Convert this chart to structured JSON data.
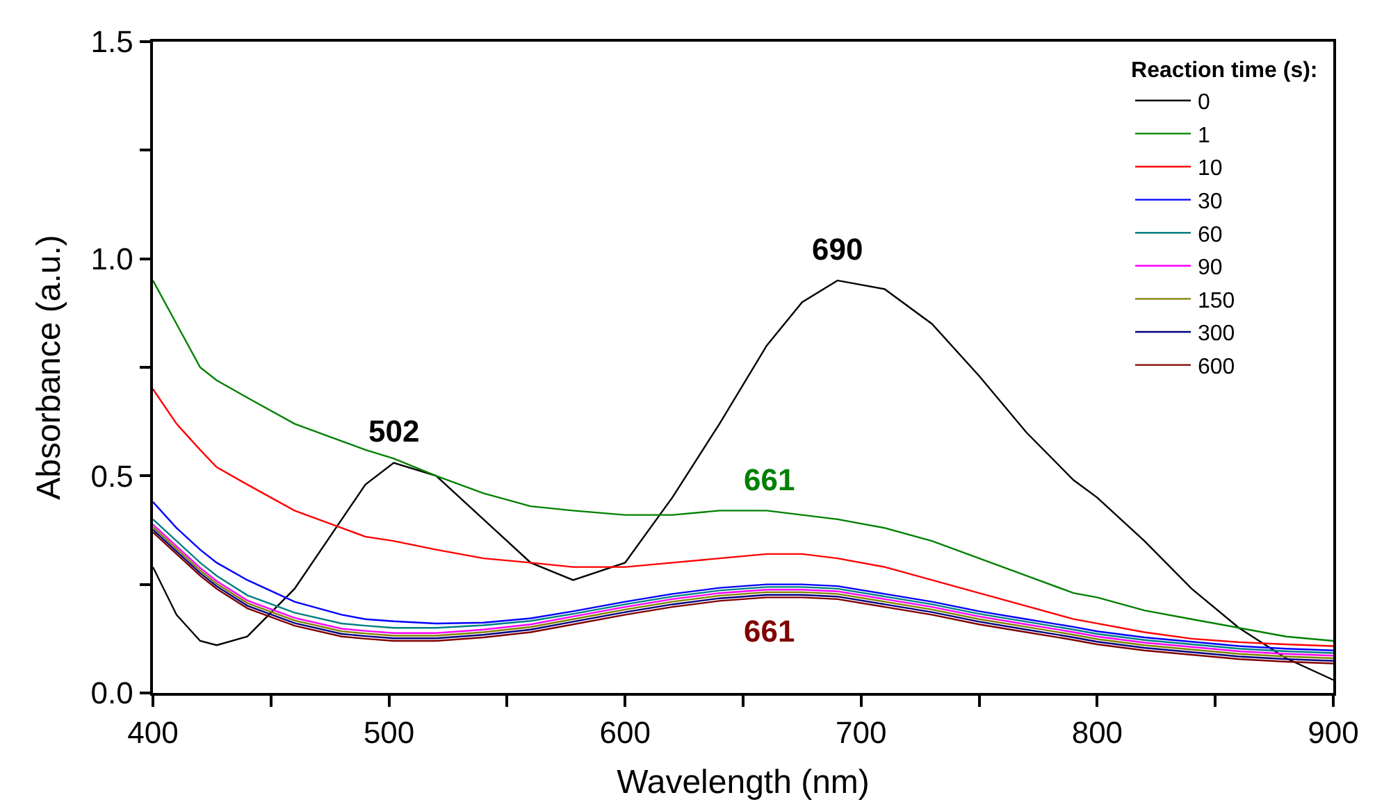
{
  "chart_data": {
    "type": "line",
    "xlabel": "Wavelength (nm)",
    "ylabel": "Absorbance (a.u.)",
    "legend_title": "Reaction time (s):",
    "x": [
      400,
      410,
      420,
      427,
      440,
      460,
      480,
      490,
      502,
      520,
      540,
      560,
      578,
      600,
      620,
      640,
      660,
      675,
      690,
      710,
      730,
      750,
      770,
      790,
      800,
      820,
      840,
      860,
      880,
      900
    ],
    "series": [
      {
        "name": "0",
        "color": "#000000",
        "values": [
          0.29,
          0.18,
          0.12,
          0.11,
          0.13,
          0.24,
          0.4,
          0.48,
          0.53,
          0.5,
          0.4,
          0.3,
          0.26,
          0.3,
          0.45,
          0.62,
          0.8,
          0.9,
          0.95,
          0.93,
          0.85,
          0.73,
          0.6,
          0.49,
          0.45,
          0.35,
          0.24,
          0.15,
          0.08,
          0.03
        ]
      },
      {
        "name": "1",
        "color": "#008000",
        "values": [
          0.95,
          0.85,
          0.75,
          0.72,
          0.68,
          0.62,
          0.58,
          0.56,
          0.54,
          0.5,
          0.46,
          0.43,
          0.42,
          0.41,
          0.41,
          0.42,
          0.42,
          0.41,
          0.4,
          0.38,
          0.35,
          0.31,
          0.27,
          0.23,
          0.22,
          0.19,
          0.17,
          0.15,
          0.13,
          0.12
        ]
      },
      {
        "name": "10",
        "color": "#ff0000",
        "values": [
          0.7,
          0.62,
          0.56,
          0.52,
          0.48,
          0.42,
          0.38,
          0.36,
          0.35,
          0.33,
          0.31,
          0.3,
          0.29,
          0.29,
          0.3,
          0.31,
          0.32,
          0.32,
          0.31,
          0.29,
          0.26,
          0.23,
          0.2,
          0.17,
          0.16,
          0.14,
          0.125,
          0.117,
          0.112,
          0.108
        ]
      },
      {
        "name": "30",
        "color": "#0000ff",
        "values": [
          0.44,
          0.38,
          0.33,
          0.3,
          0.26,
          0.21,
          0.18,
          0.17,
          0.165,
          0.16,
          0.162,
          0.172,
          0.188,
          0.21,
          0.228,
          0.242,
          0.25,
          0.25,
          0.246,
          0.228,
          0.21,
          0.188,
          0.17,
          0.152,
          0.142,
          0.128,
          0.118,
          0.108,
          0.102,
          0.098
        ]
      },
      {
        "name": "60",
        "color": "#008080",
        "values": [
          0.4,
          0.35,
          0.3,
          0.27,
          0.225,
          0.185,
          0.16,
          0.155,
          0.15,
          0.15,
          0.156,
          0.166,
          0.182,
          0.204,
          0.222,
          0.236,
          0.244,
          0.244,
          0.24,
          0.222,
          0.204,
          0.182,
          0.164,
          0.146,
          0.136,
          0.122,
          0.112,
          0.102,
          0.096,
          0.092
        ]
      },
      {
        "name": "90",
        "color": "#ff00ff",
        "values": [
          0.388,
          0.338,
          0.288,
          0.258,
          0.213,
          0.173,
          0.148,
          0.143,
          0.138,
          0.138,
          0.146,
          0.158,
          0.176,
          0.198,
          0.216,
          0.23,
          0.238,
          0.238,
          0.234,
          0.216,
          0.198,
          0.176,
          0.158,
          0.14,
          0.13,
          0.116,
          0.106,
          0.096,
          0.09,
          0.086
        ]
      },
      {
        "name": "150",
        "color": "#808000",
        "values": [
          0.382,
          0.332,
          0.282,
          0.252,
          0.207,
          0.167,
          0.142,
          0.137,
          0.132,
          0.132,
          0.14,
          0.152,
          0.17,
          0.192,
          0.21,
          0.224,
          0.232,
          0.232,
          0.228,
          0.21,
          0.192,
          0.17,
          0.152,
          0.134,
          0.124,
          0.11,
          0.1,
          0.09,
          0.084,
          0.08
        ]
      },
      {
        "name": "300",
        "color": "#000080",
        "values": [
          0.376,
          0.326,
          0.276,
          0.246,
          0.201,
          0.161,
          0.136,
          0.131,
          0.126,
          0.126,
          0.134,
          0.146,
          0.164,
          0.186,
          0.204,
          0.218,
          0.226,
          0.226,
          0.222,
          0.204,
          0.186,
          0.164,
          0.146,
          0.128,
          0.118,
          0.104,
          0.094,
          0.084,
          0.078,
          0.074
        ]
      },
      {
        "name": "600",
        "color": "#800000",
        "values": [
          0.37,
          0.32,
          0.27,
          0.24,
          0.195,
          0.155,
          0.13,
          0.125,
          0.12,
          0.12,
          0.128,
          0.14,
          0.158,
          0.18,
          0.198,
          0.212,
          0.22,
          0.22,
          0.216,
          0.198,
          0.18,
          0.158,
          0.14,
          0.122,
          0.112,
          0.098,
          0.088,
          0.078,
          0.072,
          0.068
        ]
      }
    ],
    "annotations": [
      {
        "text": "502",
        "x": 502,
        "y": 0.53
      },
      {
        "text": "690",
        "x": 690,
        "y": 0.95
      },
      {
        "text": "661",
        "x": 661,
        "y": 0.42
      },
      {
        "text": "661",
        "x": 661,
        "y": 0.22
      }
    ],
    "xlim": [
      400,
      900
    ],
    "ylim": [
      0,
      1.5
    ],
    "xticks": [
      400,
      {
        "value": 450,
        "label": null
      },
      500,
      {
        "value": 550,
        "label": null
      },
      600,
      {
        "value": 650,
        "label": null
      },
      700,
      {
        "value": 750,
        "label": null
      },
      800,
      {
        "value": 850,
        "label": null
      },
      900
    ],
    "yticks": [
      {
        "value": 0,
        "label": "0.0"
      },
      {
        "value": 0.25,
        "label": null
      },
      0.5,
      {
        "value": 0.75,
        "label": null
      },
      {
        "value": 1.0,
        "label": "1.0"
      },
      {
        "value": 1.25,
        "label": null
      },
      1.5
    ],
    "legend": "top right",
    "marker": "none",
    "line_style": "solid"
  }
}
